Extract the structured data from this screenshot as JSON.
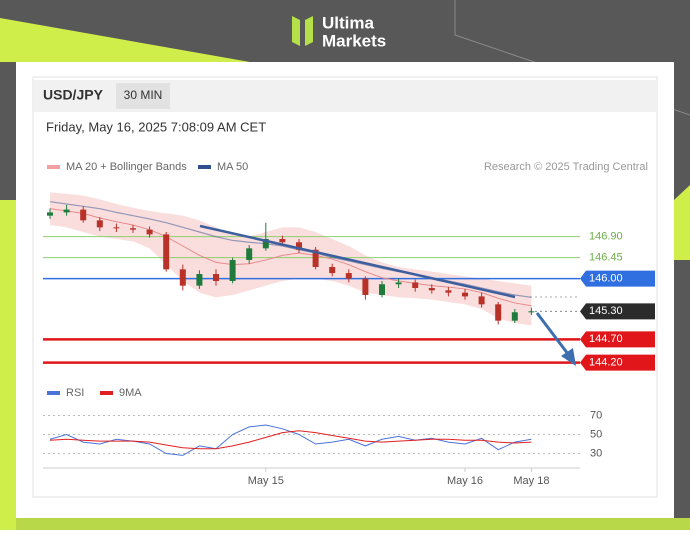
{
  "header": {
    "brand_top": "Ultima",
    "brand_bottom": "Markets"
  },
  "panel": {
    "symbol": "USD/JPY",
    "timeframe": "30 MIN",
    "timestamp": "Friday, May 16, 2025 7:08:09 AM CET",
    "credit": "Research © 2025 Trading Central"
  },
  "chart_data": [
    {
      "type": "candlestick",
      "categories": [
        null,
        null,
        null,
        null,
        null,
        null,
        null,
        null,
        null,
        null,
        null,
        null,
        null,
        "May 15",
        null,
        null,
        null,
        null,
        null,
        null,
        null,
        null,
        null,
        null,
        null,
        "May 16",
        null,
        null,
        null,
        "May 18"
      ],
      "open": [
        147.35,
        147.42,
        147.48,
        147.25,
        147.1,
        147.08,
        147.05,
        146.95,
        146.2,
        145.85,
        146.1,
        145.95,
        146.4,
        146.65,
        146.85,
        146.78,
        146.62,
        146.25,
        146.12,
        146.0,
        145.65,
        145.88,
        145.92,
        145.8,
        145.75,
        145.7,
        145.62,
        145.45,
        145.1,
        145.28
      ],
      "high": [
        147.5,
        147.58,
        147.55,
        147.32,
        147.18,
        147.15,
        147.12,
        147.0,
        146.3,
        146.18,
        146.2,
        146.45,
        146.72,
        147.2,
        146.92,
        146.85,
        146.68,
        146.32,
        146.2,
        146.05,
        145.95,
        146.0,
        145.98,
        145.88,
        145.82,
        145.78,
        145.7,
        145.5,
        145.35,
        145.38
      ],
      "low": [
        147.28,
        147.35,
        147.2,
        147.02,
        147.0,
        146.98,
        146.88,
        146.15,
        145.75,
        145.78,
        145.85,
        145.9,
        146.32,
        146.6,
        146.7,
        146.55,
        146.2,
        146.05,
        145.92,
        145.55,
        145.6,
        145.8,
        145.72,
        145.68,
        145.62,
        145.55,
        145.38,
        145.02,
        145.05,
        145.22
      ],
      "close": [
        147.42,
        147.48,
        147.25,
        147.1,
        147.08,
        147.05,
        146.95,
        146.2,
        145.85,
        146.1,
        145.95,
        146.4,
        146.65,
        146.85,
        146.78,
        146.62,
        146.25,
        146.12,
        146.0,
        145.65,
        145.88,
        145.92,
        145.8,
        145.75,
        145.7,
        145.62,
        145.45,
        145.1,
        145.28,
        145.3
      ],
      "up_color": "#1f7a3c",
      "down_color": "#b83228",
      "ylim": [
        144,
        147.9
      ],
      "series": [
        {
          "name": "MA 20 + Bollinger Bands",
          "color": "#f0a0a0",
          "values": [
            147.5,
            147.45,
            147.4,
            147.3,
            147.22,
            147.15,
            147.05,
            146.9,
            146.7,
            146.5,
            146.35,
            146.3,
            146.32,
            146.4,
            146.5,
            146.55,
            146.5,
            146.42,
            146.3,
            146.15,
            146.02,
            145.95,
            145.9,
            145.85,
            145.82,
            145.78,
            145.7,
            145.58,
            145.48,
            145.42
          ],
          "upper": [
            147.85,
            147.82,
            147.78,
            147.7,
            147.6,
            147.52,
            147.45,
            147.4,
            147.35,
            147.25,
            147.1,
            146.95,
            146.9,
            147.0,
            147.1,
            147.1,
            147.0,
            146.85,
            146.7,
            146.5,
            146.35,
            146.25,
            146.2,
            146.15,
            146.1,
            146.05,
            146.0,
            145.95,
            145.9,
            145.85
          ],
          "lower": [
            147.15,
            147.1,
            147.0,
            146.9,
            146.85,
            146.8,
            146.65,
            146.3,
            145.95,
            145.7,
            145.6,
            145.65,
            145.75,
            145.85,
            145.95,
            146.0,
            146.0,
            145.95,
            145.85,
            145.7,
            145.65,
            145.6,
            145.58,
            145.55,
            145.5,
            145.45,
            145.35,
            145.15,
            145.05,
            145.0
          ]
        },
        {
          "name": "MA 50",
          "color": "#2f4f8f",
          "values": [
            147.65,
            147.6,
            147.55,
            147.5,
            147.42,
            147.35,
            147.28,
            147.2,
            147.1,
            147.0,
            146.9,
            146.82,
            146.78,
            146.75,
            146.7,
            146.62,
            146.55,
            146.45,
            146.38,
            146.3,
            146.22,
            146.15,
            146.1,
            146.02,
            145.95,
            145.88,
            145.8,
            145.72,
            145.65,
            145.6
          ]
        }
      ],
      "levels": [
        {
          "value": 146.9,
          "label": "146.90",
          "color": "#8fcf6e",
          "style": "plain"
        },
        {
          "value": 146.45,
          "label": "146.45",
          "color": "#8fcf6e",
          "style": "plain"
        },
        {
          "value": 146,
          "label": "146.00",
          "color": "#2f6fe0",
          "style": "box"
        },
        {
          "value": 145.3,
          "label": "145.30",
          "color": "#2b2b2b",
          "style": "dotted-box"
        },
        {
          "value": 144.7,
          "label": "144.70",
          "color": "#e0161b",
          "style": "box"
        },
        {
          "value": 144.2,
          "label": "144.20",
          "color": "#e0161b",
          "style": "box"
        }
      ]
    },
    {
      "type": "line",
      "ylim": [
        20,
        80
      ],
      "yticks": [
        70,
        50,
        30
      ],
      "series": [
        {
          "name": "RSI",
          "color": "#4a72d9",
          "values": [
            45,
            50,
            42,
            40,
            45,
            43,
            40,
            30,
            28,
            38,
            35,
            50,
            58,
            60,
            56,
            50,
            40,
            42,
            45,
            38,
            45,
            48,
            44,
            46,
            42,
            40,
            46,
            34,
            42,
            45
          ]
        },
        {
          "name": "9MA",
          "color": "#e02020",
          "values": [
            44,
            45,
            44,
            43,
            43,
            43,
            42,
            39,
            36,
            35,
            35,
            38,
            42,
            47,
            52,
            54,
            52,
            49,
            46,
            43,
            42,
            43,
            44,
            45,
            45,
            44,
            44,
            42,
            41,
            42
          ]
        }
      ]
    }
  ]
}
